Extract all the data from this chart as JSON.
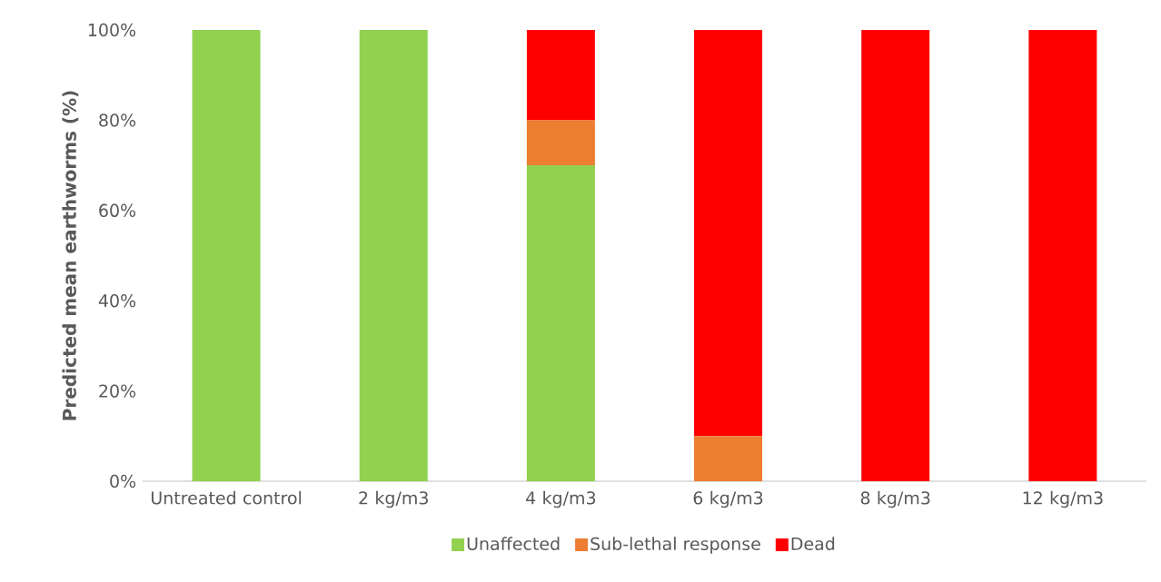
{
  "chart_data": {
    "type": "bar",
    "stacked": true,
    "ylabel": "Predicted mean earthworms (%)",
    "categories": [
      "Untreated control",
      "2 kg/m3",
      "4 kg/m3",
      "6 kg/m3",
      "8 kg/m3",
      "12 kg/m3"
    ],
    "series": [
      {
        "name": "Unaffected",
        "color": "#92d050",
        "values": [
          100,
          100,
          70,
          0,
          0,
          0
        ]
      },
      {
        "name": "Sub-lethal response",
        "color": "#ed7d31",
        "values": [
          0,
          0,
          10,
          10,
          0,
          0
        ]
      },
      {
        "name": "Dead",
        "color": "#ff0000",
        "values": [
          0,
          0,
          20,
          90,
          100,
          100
        ]
      }
    ],
    "ylim": [
      0,
      100
    ],
    "yticks": [
      {
        "value": 0,
        "label": "0%"
      },
      {
        "value": 20,
        "label": "20%"
      },
      {
        "value": 40,
        "label": "40%"
      },
      {
        "value": 60,
        "label": "60%"
      },
      {
        "value": 80,
        "label": "80%"
      },
      {
        "value": 100,
        "label": "100%"
      }
    ],
    "grid": false,
    "legend": "bottom"
  }
}
